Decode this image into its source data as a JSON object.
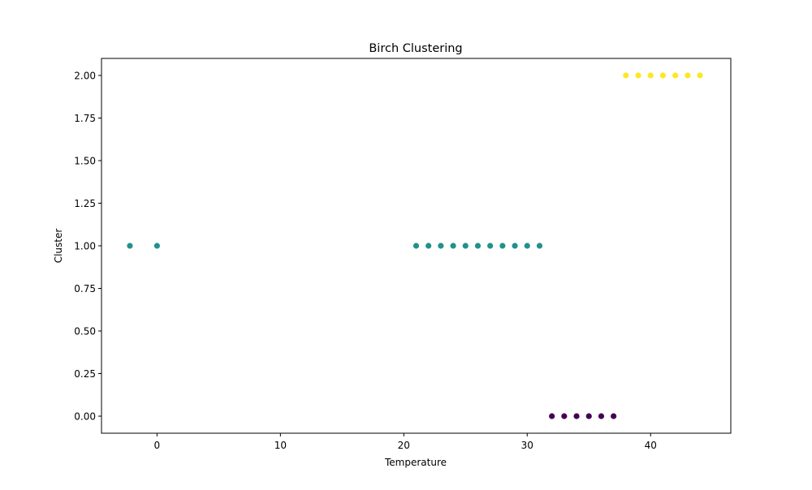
{
  "chart_data": {
    "type": "scatter",
    "title": "Birch Clustering",
    "xlabel": "Temperature",
    "ylabel": "Cluster",
    "xlim": [
      -4.5,
      46.5
    ],
    "ylim": [
      -0.1,
      2.1
    ],
    "x_ticks": [
      0,
      10,
      20,
      30,
      40
    ],
    "x_tick_labels": [
      "0",
      "10",
      "20",
      "30",
      "40"
    ],
    "y_ticks": [
      0,
      0.25,
      0.5,
      0.75,
      1.0,
      1.25,
      1.5,
      1.75,
      2.0
    ],
    "y_tick_labels": [
      "0.00",
      "0.25",
      "0.50",
      "0.75",
      "1.00",
      "1.25",
      "1.50",
      "1.75",
      "2.00"
    ],
    "grid": false,
    "legend": "none",
    "cluster_colors": {
      "0": "#440154",
      "1": "#21918c",
      "2": "#fde725"
    },
    "points": [
      {
        "x": -2.2,
        "y": 1
      },
      {
        "x": 0,
        "y": 1
      },
      {
        "x": 21,
        "y": 1
      },
      {
        "x": 22,
        "y": 1
      },
      {
        "x": 23,
        "y": 1
      },
      {
        "x": 24,
        "y": 1
      },
      {
        "x": 25,
        "y": 1
      },
      {
        "x": 26,
        "y": 1
      },
      {
        "x": 27,
        "y": 1
      },
      {
        "x": 28,
        "y": 1
      },
      {
        "x": 29,
        "y": 1
      },
      {
        "x": 30,
        "y": 1
      },
      {
        "x": 31,
        "y": 1
      },
      {
        "x": 32,
        "y": 0
      },
      {
        "x": 33,
        "y": 0
      },
      {
        "x": 34,
        "y": 0
      },
      {
        "x": 35,
        "y": 0
      },
      {
        "x": 36,
        "y": 0
      },
      {
        "x": 37,
        "y": 0
      },
      {
        "x": 38,
        "y": 2
      },
      {
        "x": 39,
        "y": 2
      },
      {
        "x": 40,
        "y": 2
      },
      {
        "x": 41,
        "y": 2
      },
      {
        "x": 42,
        "y": 2
      },
      {
        "x": 43,
        "y": 2
      },
      {
        "x": 44,
        "y": 2
      }
    ]
  }
}
